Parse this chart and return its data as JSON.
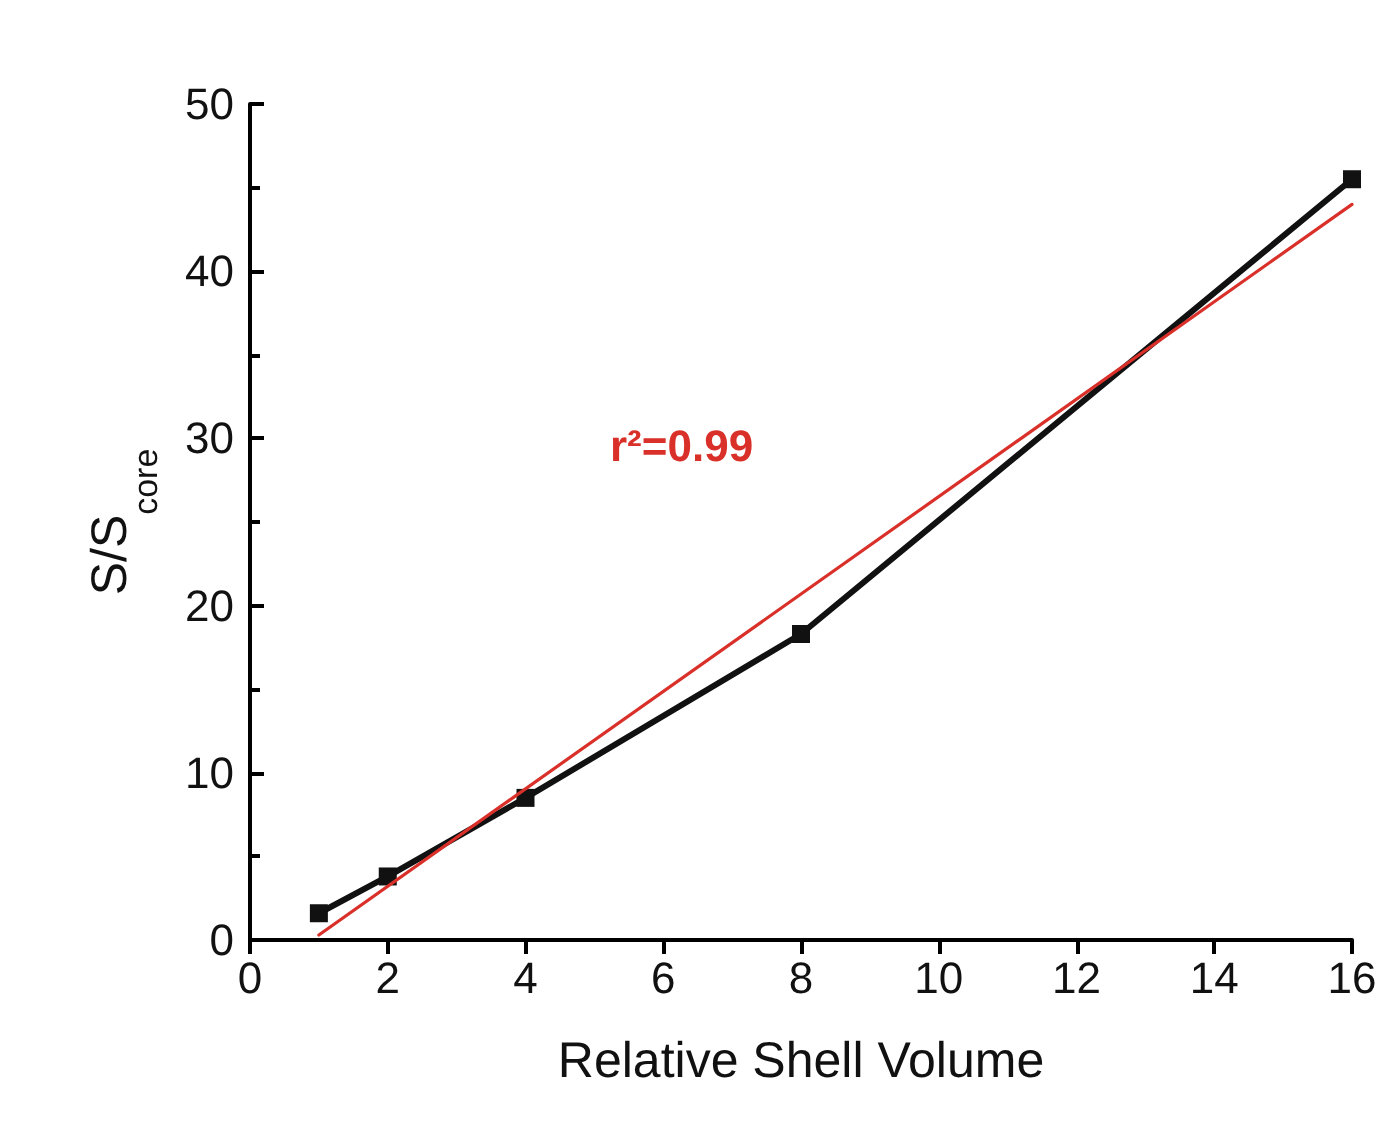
{
  "chart_data": {
    "type": "line",
    "xlabel": "Relative Shell Volume",
    "ylabel": "S/S$_{core}$",
    "x": [
      1,
      2,
      4,
      8,
      16
    ],
    "series": [
      {
        "color": "#111111",
        "values": [
          1.6,
          3.8,
          8.5,
          18.3,
          45.5
        ],
        "marker": "square"
      },
      {
        "type": "line",
        "color": "#d9302a",
        "x": [
          1,
          16
        ],
        "values": [
          0.3,
          44
        ],
        "marker": "none"
      }
    ],
    "xlim": [
      0,
      16
    ],
    "xticks": [
      0,
      2,
      4,
      6,
      8,
      10,
      12,
      14,
      16
    ],
    "ylim": [
      0,
      50
    ],
    "yticks": [
      0,
      10,
      20,
      30,
      40,
      50
    ],
    "annotations": [
      "r²=0.99"
    ],
    "grid": false
  }
}
